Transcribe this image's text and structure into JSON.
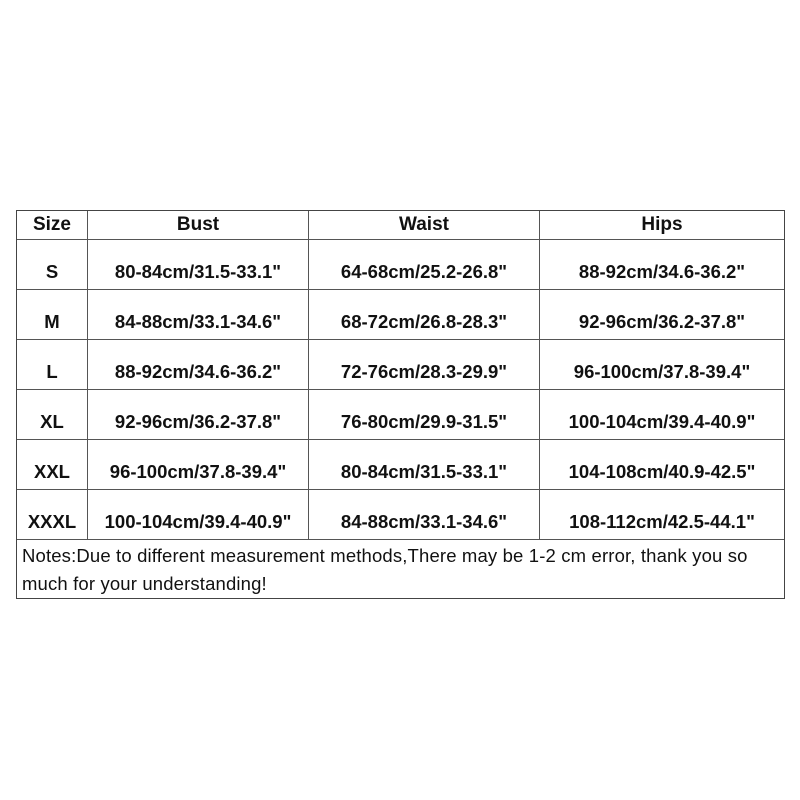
{
  "table": {
    "headers": [
      "Size",
      "Bust",
      "Waist",
      "Hips"
    ],
    "rows": [
      [
        "S",
        "80-84cm/31.5-33.1\"",
        "64-68cm/25.2-26.8\"",
        "88-92cm/34.6-36.2\""
      ],
      [
        "M",
        "84-88cm/33.1-34.6\"",
        "68-72cm/26.8-28.3\"",
        "92-96cm/36.2-37.8\""
      ],
      [
        "L",
        "88-92cm/34.6-36.2\"",
        "72-76cm/28.3-29.9\"",
        "96-100cm/37.8-39.4\""
      ],
      [
        "XL",
        "92-96cm/36.2-37.8\"",
        "76-80cm/29.9-31.5\"",
        "100-104cm/39.4-40.9\""
      ],
      [
        "XXL",
        "96-100cm/37.8-39.4\"",
        "80-84cm/31.5-33.1\"",
        "104-108cm/40.9-42.5\""
      ],
      [
        "XXXL",
        "100-104cm/39.4-40.9\"",
        "84-88cm/33.1-34.6\"",
        "108-112cm/42.5-44.1\""
      ]
    ],
    "notes": "Notes:Due to different measurement methods,There may be 1-2 cm error, thank you so much for your understanding!"
  }
}
